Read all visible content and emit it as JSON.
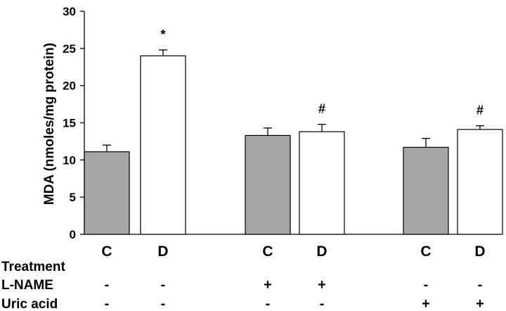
{
  "chart_data": {
    "type": "bar",
    "ylabel": "MDA (nmoles/mg protein)",
    "ylim": [
      0,
      30
    ],
    "yticks": [
      0,
      5,
      10,
      15,
      20,
      25,
      30
    ],
    "grid": false,
    "categories": [
      "C",
      "D",
      "C",
      "D",
      "C",
      "D"
    ],
    "bars": [
      {
        "label": "C",
        "value": 11.1,
        "error": 0.9,
        "fill": "#a6a6a6",
        "annotation": ""
      },
      {
        "label": "D",
        "value": 24.0,
        "error": 0.8,
        "fill": "#ffffff",
        "annotation": "*"
      },
      {
        "label": "C",
        "value": 13.3,
        "error": 1.0,
        "fill": "#a6a6a6",
        "annotation": ""
      },
      {
        "label": "D",
        "value": 13.8,
        "error": 1.0,
        "fill": "#ffffff",
        "annotation": "#"
      },
      {
        "label": "C",
        "value": 11.7,
        "error": 1.2,
        "fill": "#a6a6a6",
        "annotation": ""
      },
      {
        "label": "D",
        "value": 14.1,
        "error": 0.5,
        "fill": "#ffffff",
        "annotation": "#"
      }
    ],
    "treatment_rows": [
      {
        "label": "Treatment",
        "values": [
          "",
          "",
          "",
          "",
          "",
          ""
        ]
      },
      {
        "label": "L-NAME",
        "values": [
          "-",
          "-",
          "+",
          "+",
          "-",
          "-"
        ]
      },
      {
        "label": "Uric acid",
        "values": [
          "-",
          "-",
          "-",
          "-",
          "+",
          "+"
        ]
      }
    ]
  }
}
